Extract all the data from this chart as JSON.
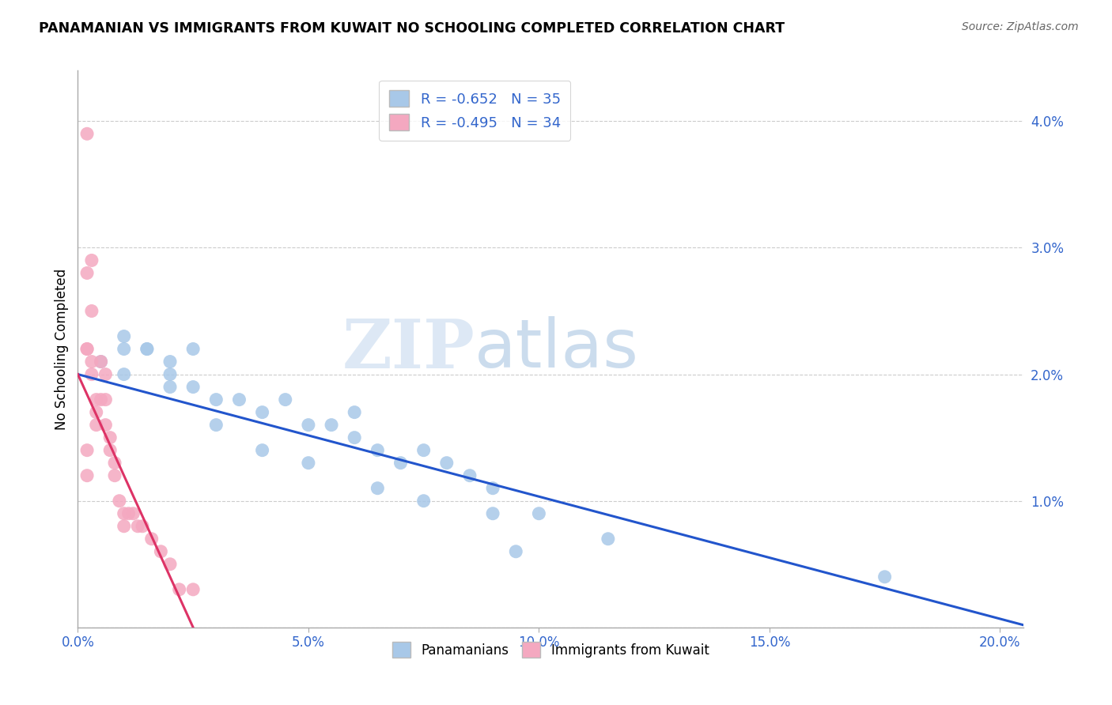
{
  "title": "PANAMANIAN VS IMMIGRANTS FROM KUWAIT NO SCHOOLING COMPLETED CORRELATION CHART",
  "source": "Source: ZipAtlas.com",
  "ylabel": "No Schooling Completed",
  "y_ticks": [
    0.0,
    0.01,
    0.02,
    0.03,
    0.04
  ],
  "y_tick_labels": [
    "",
    "1.0%",
    "2.0%",
    "3.0%",
    "4.0%"
  ],
  "x_ticks": [
    0.0,
    0.05,
    0.1,
    0.15,
    0.2
  ],
  "x_tick_labels": [
    "0.0%",
    "5.0%",
    "10.0%",
    "15.0%",
    "20.0%"
  ],
  "xlim": [
    0.0,
    0.205
  ],
  "ylim": [
    0.0,
    0.044
  ],
  "legend_blue_label": "R = -0.652   N = 35",
  "legend_pink_label": "R = -0.495   N = 34",
  "legend_label_panamanians": "Panamanians",
  "legend_label_kuwait": "Immigrants from Kuwait",
  "blue_scatter_x": [
    0.005,
    0.01,
    0.01,
    0.015,
    0.02,
    0.02,
    0.02,
    0.025,
    0.025,
    0.03,
    0.035,
    0.04,
    0.045,
    0.05,
    0.055,
    0.06,
    0.06,
    0.065,
    0.07,
    0.075,
    0.08,
    0.085,
    0.09,
    0.01,
    0.015,
    0.03,
    0.04,
    0.05,
    0.065,
    0.075,
    0.09,
    0.1,
    0.115,
    0.175,
    0.095
  ],
  "blue_scatter_y": [
    0.021,
    0.02,
    0.023,
    0.022,
    0.02,
    0.021,
    0.019,
    0.022,
    0.019,
    0.018,
    0.018,
    0.017,
    0.018,
    0.016,
    0.016,
    0.015,
    0.017,
    0.014,
    0.013,
    0.014,
    0.013,
    0.012,
    0.011,
    0.022,
    0.022,
    0.016,
    0.014,
    0.013,
    0.011,
    0.01,
    0.009,
    0.009,
    0.007,
    0.004,
    0.006
  ],
  "pink_scatter_x": [
    0.002,
    0.002,
    0.002,
    0.002,
    0.003,
    0.003,
    0.004,
    0.004,
    0.004,
    0.005,
    0.005,
    0.006,
    0.006,
    0.006,
    0.007,
    0.007,
    0.008,
    0.008,
    0.009,
    0.01,
    0.01,
    0.011,
    0.012,
    0.013,
    0.014,
    0.016,
    0.018,
    0.02,
    0.022,
    0.025,
    0.003,
    0.003,
    0.002,
    0.002
  ],
  "pink_scatter_y": [
    0.039,
    0.028,
    0.022,
    0.022,
    0.021,
    0.02,
    0.018,
    0.017,
    0.016,
    0.021,
    0.018,
    0.02,
    0.018,
    0.016,
    0.015,
    0.014,
    0.013,
    0.012,
    0.01,
    0.009,
    0.008,
    0.009,
    0.009,
    0.008,
    0.008,
    0.007,
    0.006,
    0.005,
    0.003,
    0.003,
    0.029,
    0.025,
    0.014,
    0.012
  ],
  "blue_line_x": [
    0.0,
    0.205
  ],
  "blue_line_y": [
    0.02,
    0.0002
  ],
  "pink_line_x": [
    0.0,
    0.025
  ],
  "pink_line_y": [
    0.02,
    0.0
  ],
  "blue_color": "#a8c8e8",
  "pink_color": "#f4a8c0",
  "blue_line_color": "#2255cc",
  "pink_line_color": "#dd3366",
  "background_color": "#ffffff",
  "grid_color": "#cccccc",
  "tick_color": "#3366cc"
}
